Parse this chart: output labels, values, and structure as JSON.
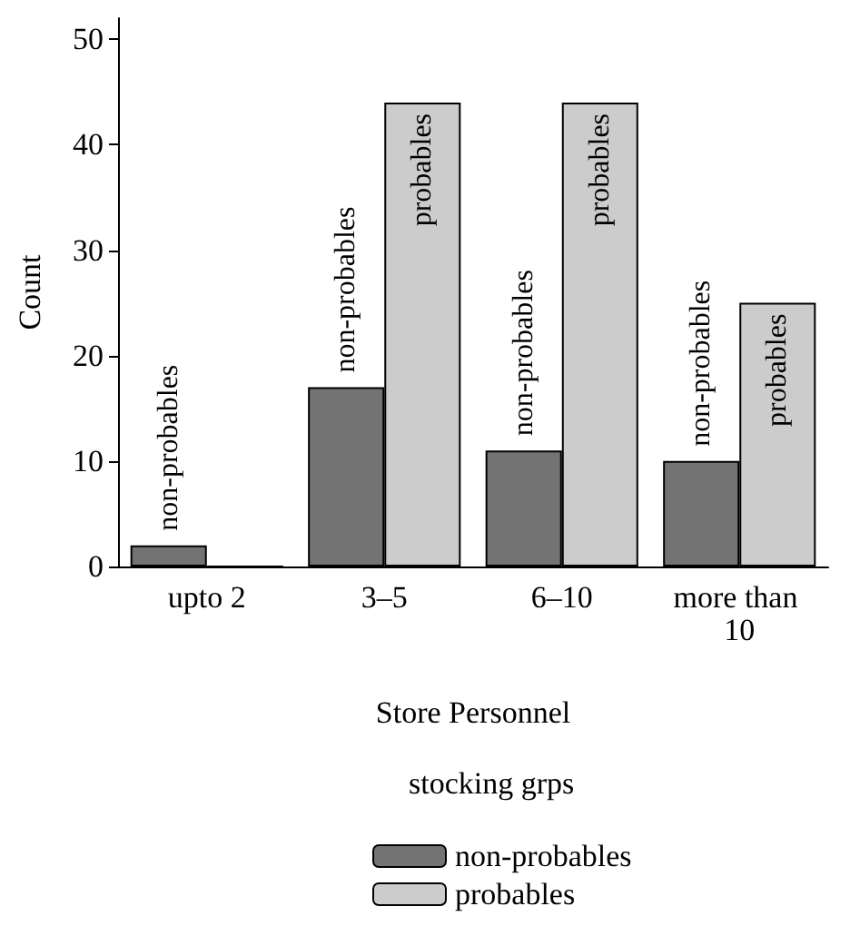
{
  "chart_data": {
    "type": "bar",
    "xlabel": "Store Personnel",
    "ylabel": "Count",
    "legend_title": "stocking grps",
    "categories": [
      "upto 2",
      "3–5",
      "6–10",
      "more than 10"
    ],
    "series": [
      {
        "name": "non-probables",
        "color": "#737373",
        "values": [
          2,
          17,
          11,
          10
        ]
      },
      {
        "name": "probables",
        "color": "#cccccc",
        "values": [
          0,
          44,
          44,
          25
        ]
      }
    ],
    "ylim": [
      0,
      52
    ],
    "yticks": [
      0,
      10,
      20,
      30,
      40,
      50
    ],
    "grid": false,
    "legend": "bottom"
  }
}
